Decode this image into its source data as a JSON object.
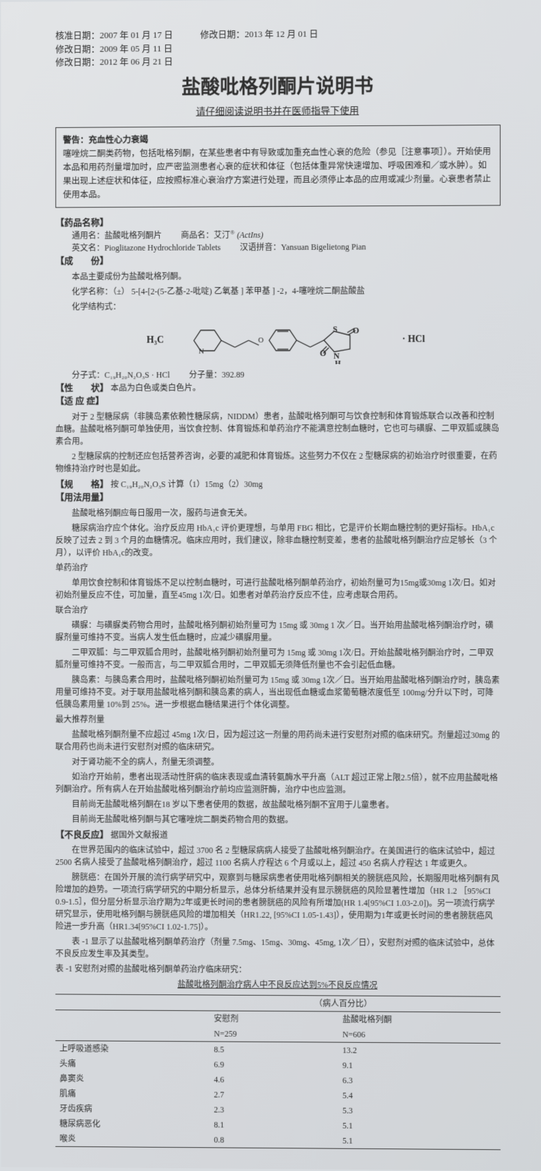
{
  "dates": {
    "approve": "核准日期：2007 年 01 月 17 日",
    "rev1": "修改日期：2009 年 05 月 11 日",
    "rev2": "修改日期：2012 年 06 月 21 日",
    "rev3": "修改日期：2013 年 12 月 01 日"
  },
  "title": "盐酸吡格列酮片说明书",
  "subtitle": "请仔细阅读说明书并在医师指导下使用",
  "warning": {
    "lead": "警告：充血性心力衰竭",
    "body": "噻唑烷二酮类药物，包括吡格列酮，在某些患者中有导致或加重充血性心衰的危险（参见［注意事项］）。开始使用本品和用药剂量增加时，应严密监测患者心衰的症状和体征（包括体重异常快速增加、呼吸困难和／或水肿）。如果出现上述症状和体征，应按照标准心衰治疗方案进行处理，而且必须停止本品的应用或减少剂量。心衰患者禁止使用本品。"
  },
  "drug_name": {
    "head": "【药品名称】",
    "generic": "通用名：盐酸吡格列酮片",
    "trade": "商品名：艾汀",
    "trade_en": "(ActIns)",
    "reg": "®",
    "english": "英文名：Pioglitazone Hydrochloride Tablets",
    "pinyin": "汉语拼音：Yansuan Bigelietong Pian"
  },
  "composition": {
    "head": "【成　　份】",
    "main": "本品主要成份为盐酸吡格列酮。",
    "chem_name": "化学名称：（±） 5-[4-[2-(5-乙基-2-吡啶) 乙氧基 ] 苯甲基 ] -2，4-噻唑烷二酮盐酸盐",
    "struct_label": "化学结构式：",
    "h3c": "H₃C",
    "hcl": "· HCl",
    "formula": "分子式：C₁₉H₂₀N₂O₃S · HCl",
    "mw": "分子量：392.89"
  },
  "character": {
    "head": "【性　　状】",
    "text": "本品为白色或类白色片。"
  },
  "indication": {
    "head": "【适 应 症】",
    "p1": "对于 2 型糖尿病（非胰岛素依赖性糖尿病，NIDDM）患者，盐酸吡格列酮可与饮食控制和体育锻炼联合以改善和控制血糖。盐酸吡格列酮可单独使用，当饮食控制、体育锻炼和单药治疗不能满意控制血糖时，它也可与磺脲、二甲双胍或胰岛素合用。",
    "p2": "2 型糖尿病的控制还应包括营养咨询，必要的减肥和体育锻炼。这些努力不仅在 2 型糖尿病的初始治疗时很重要，在药物维持治疗时也是如此。"
  },
  "spec": {
    "head": "【规　　格】",
    "text": "按 C₁₉H₂₀N₂O₃S 计算（1）15mg（2）30mg"
  },
  "usage": {
    "head": "【用法用量】",
    "p1": "盐酸吡格列酮应每日服用一次，服药与进食无关。",
    "p2": "糖尿病治疗应个体化。治疗反应用 HbA₁c 评价更理想，与单用 FBG 相比，它是评价长期血糖控制的更好指标。HbA₁c 反映了过去 2 到 3 个月的血糖情况。临床应用时，我们建议，除非血糖控制变差，患者的盐酸吡格列酮治疗应足够长（3 个月），以评价 HbA₁c的改变。",
    "mono_h": "单药治疗",
    "mono": "单用饮食控制和体育锻炼不足以控制血糖时，可进行盐酸吡格列酮单药治疗，初始剂量可为15mg或30mg 1次/日。如对初始剂量反应不佳，可加量，直至45mg 1次/日。如患者对单药治疗反应不佳，应考虑联合用药。",
    "combo_h": "联合治疗",
    "p_sulf": "磺脲：与磺脲类药物合用时，盐酸吡格列酮初始剂量可为 15mg 或 30mg 1 次／日。当开始用盐酸吡格列酮治疗时，磺脲剂量可维持不变。当病人发生低血糖时，应减少磺脲用量。",
    "p_met": "二甲双胍：与二甲双胍合用时，盐酸吡格列酮初始剂量可为 15mg 或 30mg 1次/日。开始盐酸吡格列酮治疗时，二甲双胍剂量可维持不变。一般而言，与二甲双胍合用时，二甲双胍无须降低剂量也不会引起低血糖。",
    "p_ins": "胰岛素：与胰岛素合用时，盐酸吡格列酮初始剂量可为 15mg 或 30mg 1次／日。当开始用盐酸吡格列酮治疗时，胰岛素用量可维持不变。对于联用盐酸吡格列酮和胰岛素的病人，当出现低血糖或血浆葡萄糖浓度低至 100mg/分升以下时，可降低胰岛素用量 10%到 25%。进一步根据血糖结果进行个体化调整。",
    "max_h": "最大推荐剂量",
    "max": "盐酸吡格列酮剂量不应超过 45mg 1次/日，因为超过这一剂量的用药尚未进行安慰剂对照的临床研究。剂量超过30mg 的联合用药也尚未进行安慰剂对照的临床研究。",
    "renal": "对于肾功能不全的病人，剂量无须调整。",
    "liver": "如治疗开始前，患者出现活动性肝病的临床表现或血清转氨酶水平升高（ALT 超过正常上限2.5倍），就不应用盐酸吡格列酮治疗。所有病人在开始盐酸吡格列酮治疗前均应监测肝酶，治疗中也应监测。",
    "child": "目前尚无盐酸吡格列酮在18 岁以下患者使用的数据，故盐酸吡格列酮不宜用于儿童患者。",
    "other": "目前尚无盐酸吡格列酮与其它噻唑烷二酮类药物合用的数据。"
  },
  "adverse": {
    "head": "【不良反应】",
    "src": "据国外文献报道",
    "p1": "在世界范围内的临床试验中，超过 3700 名 2 型糖尿病病人接受了盐酸吡格列酮治疗。在美国进行的临床试验中，超过 2500 名病人接受了盐酸吡格列酮治疗，超过 1100 名病人疗程达 6 个月或以上，超过 450 名病人疗程达 1 年或更久。",
    "p2": "膀胱癌：在国外开展的流行病学研究中，观察到与糖尿病患者使用吡格列酮相关的膀胱癌风险，长期服用吡格列酮有风险增加的趋势。一项流行病学研究的中期分析显示，总体分析结果并没有显示膀胱癌的风险显著性增加（HR 1.2 ［95%CI 0.9-1.5］，但分层分析显示治疗期为2年或更长时间的患者膀胱癌的风险有所增加(HR 1.4[95%CI 1.03-2.0])。另一项流行病学研究显示，使用吡格列酮与膀胱癌风险的增加相关（HR1.22, [95%CI 1.05-1.43]），使用期为1年或更长时间的患者膀胱癌风险进一步升高（HR1.34[95%CI 1.02-1.75]）。",
    "p3": "表 -1 显示了以盐酸吡格列酮单药治疗（剂量 7.5mg、15mg、30mg、45mg, 1次／日），安慰剂对照的临床试验中，总体不良反应发生率及其类型。",
    "tbl_title": "表 -1 安慰剂对照的盐酸吡格列酮单药治疗临床研究：",
    "tbl_sub": "盐酸吡格列酮治疗病人中不良反应达到5%不良反应情况",
    "col_percent": "（病人百分比）",
    "col_placebo": "安慰剂",
    "col_drug": "盐酸吡格列酮",
    "n_placebo": "N=259",
    "n_drug": "N=606",
    "rows": [
      {
        "label": "上呼吸道感染",
        "a": "8.5",
        "b": "13.2"
      },
      {
        "label": "头痛",
        "a": "6.9",
        "b": "9.1"
      },
      {
        "label": "鼻窦炎",
        "a": "4.6",
        "b": "6.3"
      },
      {
        "label": "肌痛",
        "a": "2.7",
        "b": "5.4"
      },
      {
        "label": "牙齿疾病",
        "a": "2.3",
        "b": "5.3"
      },
      {
        "label": "糖尿病恶化",
        "a": "8.1",
        "b": "5.1"
      },
      {
        "label": "喉炎",
        "a": "0.8",
        "b": "5.1"
      }
    ]
  }
}
